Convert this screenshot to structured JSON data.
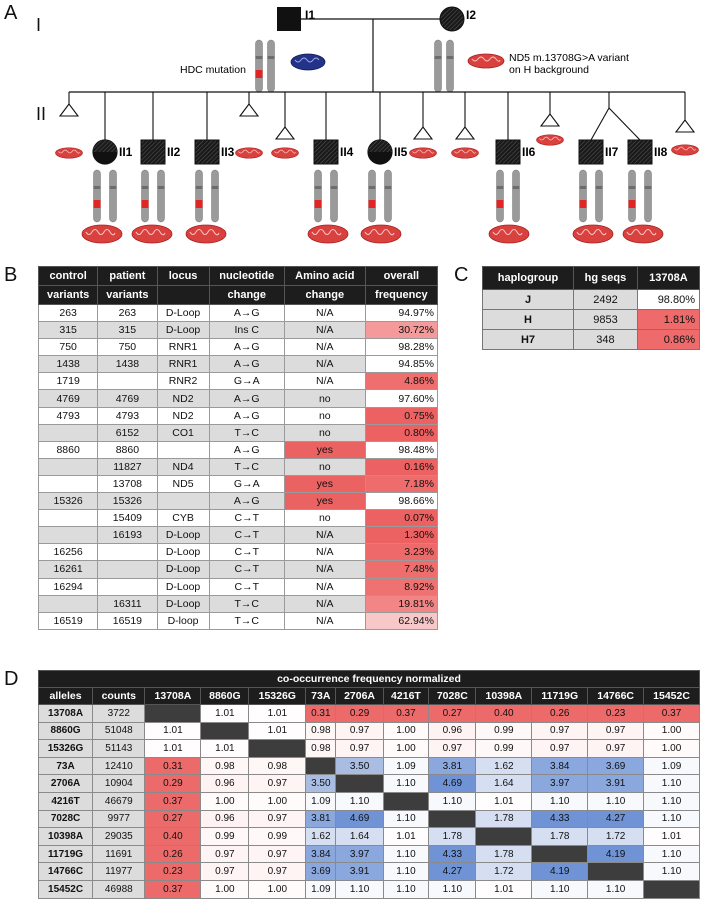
{
  "panelA": {
    "letter": "A",
    "gen1_label": "I",
    "gen2_label": "II",
    "I1_label": "I1",
    "I2_label": "I2",
    "hdc_label": "HDC mutation",
    "nd5_label_line1": "ND5 m.13708G>A variant",
    "nd5_label_line2": "on H background",
    "affected": [
      "II1",
      "II2",
      "II3",
      "II4",
      "II5",
      "II6",
      "II7",
      "II8"
    ]
  },
  "panelB": {
    "letter": "B",
    "headers": [
      [
        "control",
        "patient",
        "locus",
        "nucleotide",
        "Amino acid",
        "overall"
      ],
      [
        "variants",
        "variants",
        "",
        "change",
        "change",
        "frequency"
      ]
    ],
    "rows": [
      {
        "ctrl": "263",
        "pat": "263",
        "locus": "D-Loop",
        "nt": "A→G",
        "aa": "N/A",
        "freq": "94.97%",
        "gray": false,
        "aa_color": "",
        "freq_color": "#ffffff"
      },
      {
        "ctrl": "315",
        "pat": "315",
        "locus": "D-Loop",
        "nt": "Ins C",
        "aa": "N/A",
        "freq": "30.72%",
        "gray": true,
        "aa_color": "",
        "freq_color": "#f59a9a"
      },
      {
        "ctrl": "750",
        "pat": "750",
        "locus": "RNR1",
        "nt": "A→G",
        "aa": "N/A",
        "freq": "98.28%",
        "gray": false,
        "aa_color": "",
        "freq_color": "#ffffff"
      },
      {
        "ctrl": "1438",
        "pat": "1438",
        "locus": "RNR1",
        "nt": "A→G",
        "aa": "N/A",
        "freq": "94.85%",
        "gray": true,
        "aa_color": "",
        "freq_color": "#ffffff"
      },
      {
        "ctrl": "1719",
        "pat": "",
        "locus": "RNR2",
        "nt": "G→A",
        "aa": "N/A",
        "freq": "4.86%",
        "gray": false,
        "aa_color": "",
        "freq_color": "#ef6e6e"
      },
      {
        "ctrl": "4769",
        "pat": "4769",
        "locus": "ND2",
        "nt": "A→G",
        "aa": "no",
        "freq": "97.60%",
        "gray": true,
        "aa_color": "",
        "freq_color": "#ffffff"
      },
      {
        "ctrl": "4793",
        "pat": "4793",
        "locus": "ND2",
        "nt": "A→G",
        "aa": "no",
        "freq": "0.75%",
        "gray": false,
        "aa_color": "",
        "freq_color": "#ec6262"
      },
      {
        "ctrl": "",
        "pat": "6152",
        "locus": "CO1",
        "nt": "T→C",
        "aa": "no",
        "freq": "0.80%",
        "gray": true,
        "aa_color": "",
        "freq_color": "#ec6262"
      },
      {
        "ctrl": "8860",
        "pat": "8860",
        "locus": "",
        "nt": "A→G",
        "aa": "yes",
        "freq": "98.48%",
        "gray": false,
        "aa_color": "#ea6262",
        "freq_color": "#ffffff"
      },
      {
        "ctrl": "",
        "pat": "11827",
        "locus": "ND4",
        "nt": "T→C",
        "aa": "no",
        "freq": "0.16%",
        "gray": true,
        "aa_color": "",
        "freq_color": "#ec6262"
      },
      {
        "ctrl": "",
        "pat": "13708",
        "locus": "ND5",
        "nt": "G→A",
        "aa": "yes",
        "freq": "7.18%",
        "gray": false,
        "aa_color": "#ea6262",
        "freq_color": "#ee6c6c"
      },
      {
        "ctrl": "15326",
        "pat": "15326",
        "locus": "",
        "nt": "A→G",
        "aa": "yes",
        "freq": "98.66%",
        "gray": true,
        "aa_color": "#ea6262",
        "freq_color": "#ffffff"
      },
      {
        "ctrl": "",
        "pat": "15409",
        "locus": "CYB",
        "nt": "C→T",
        "aa": "no",
        "freq": "0.07%",
        "gray": false,
        "aa_color": "",
        "freq_color": "#ec6262"
      },
      {
        "ctrl": "",
        "pat": "16193",
        "locus": "D-Loop",
        "nt": "C→T",
        "aa": "N/A",
        "freq": "1.30%",
        "gray": true,
        "aa_color": "",
        "freq_color": "#ec6262"
      },
      {
        "ctrl": "16256",
        "pat": "",
        "locus": "D-Loop",
        "nt": "C→T",
        "aa": "N/A",
        "freq": "3.23%",
        "gray": false,
        "aa_color": "",
        "freq_color": "#ee6a6a"
      },
      {
        "ctrl": "16261",
        "pat": "",
        "locus": "D-Loop",
        "nt": "C→T",
        "aa": "N/A",
        "freq": "7.48%",
        "gray": true,
        "aa_color": "",
        "freq_color": "#ee6e6e"
      },
      {
        "ctrl": "16294",
        "pat": "",
        "locus": "D-Loop",
        "nt": "C→T",
        "aa": "N/A",
        "freq": "8.92%",
        "gray": false,
        "aa_color": "",
        "freq_color": "#ef7272"
      },
      {
        "ctrl": "",
        "pat": "16311",
        "locus": "D-Loop",
        "nt": "T→C",
        "aa": "N/A",
        "freq": "19.81%",
        "gray": true,
        "aa_color": "",
        "freq_color": "#f28686"
      },
      {
        "ctrl": "16519",
        "pat": "16519",
        "locus": "D-loop",
        "nt": "T→C",
        "aa": "N/A",
        "freq": "62.94%",
        "gray": false,
        "aa_color": "",
        "freq_color": "#f8c8c8"
      }
    ]
  },
  "panelC": {
    "letter": "C",
    "headers": [
      "haplogroup",
      "hg seqs",
      "13708A"
    ],
    "rows": [
      {
        "hg": "J",
        "seqs": "2492",
        "pct": "98.80%",
        "color": "#ffffff"
      },
      {
        "hg": "H",
        "seqs": "9853",
        "pct": "1.81%",
        "color": "#ef6a6a"
      },
      {
        "hg": "H7",
        "seqs": "348",
        "pct": "0.86%",
        "color": "#ef6a6a"
      }
    ]
  },
  "panelD": {
    "letter": "D",
    "title": "co-occurrence frequency normalized",
    "col_headers": [
      "alleles",
      "counts",
      "13708A",
      "8860G",
      "15326G",
      "73A",
      "2706A",
      "4216T",
      "7028C",
      "10398A",
      "11719G",
      "14766C",
      "15452C"
    ],
    "rows": [
      {
        "allele": "13708A",
        "count": "3722",
        "cells": [
          "",
          "1.01",
          "1.01",
          "0.31",
          "0.29",
          "0.37",
          "0.27",
          "0.40",
          "0.26",
          "0.23",
          "0.37"
        ]
      },
      {
        "allele": "8860G",
        "count": "51048",
        "cells": [
          "1.01",
          "",
          "1.01",
          "0.98",
          "0.97",
          "1.00",
          "0.96",
          "0.99",
          "0.97",
          "0.97",
          "1.00"
        ]
      },
      {
        "allele": "15326G",
        "count": "51143",
        "cells": [
          "1.01",
          "1.01",
          "",
          "0.98",
          "0.97",
          "1.00",
          "0.97",
          "0.99",
          "0.97",
          "0.97",
          "1.00"
        ]
      },
      {
        "allele": "73A",
        "count": "12410",
        "cells": [
          "0.31",
          "0.98",
          "0.98",
          "",
          "3.50",
          "1.09",
          "3.81",
          "1.62",
          "3.84",
          "3.69",
          "1.09"
        ]
      },
      {
        "allele": "2706A",
        "count": "10904",
        "cells": [
          "0.29",
          "0.96",
          "0.97",
          "3.50",
          "",
          "1.10",
          "4.69",
          "1.64",
          "3.97",
          "3.91",
          "1.10"
        ]
      },
      {
        "allele": "4216T",
        "count": "46679",
        "cells": [
          "0.37",
          "1.00",
          "1.00",
          "1.09",
          "1.10",
          "",
          "1.10",
          "1.01",
          "1.10",
          "1.10",
          "1.10"
        ]
      },
      {
        "allele": "7028C",
        "count": "9977",
        "cells": [
          "0.27",
          "0.96",
          "0.97",
          "3.81",
          "4.69",
          "1.10",
          "",
          "1.78",
          "4.33",
          "4.27",
          "1.10"
        ]
      },
      {
        "allele": "10398A",
        "count": "29035",
        "cells": [
          "0.40",
          "0.99",
          "0.99",
          "1.62",
          "1.64",
          "1.01",
          "1.78",
          "",
          "1.78",
          "1.72",
          "1.01"
        ]
      },
      {
        "allele": "11719G",
        "count": "11691",
        "cells": [
          "0.26",
          "0.97",
          "0.97",
          "3.84",
          "3.97",
          "1.10",
          "4.33",
          "1.78",
          "",
          "4.19",
          "1.10"
        ]
      },
      {
        "allele": "14766C",
        "count": "11977",
        "cells": [
          "0.23",
          "0.97",
          "0.97",
          "3.69",
          "3.91",
          "1.10",
          "4.27",
          "1.72",
          "4.19",
          "",
          "1.10"
        ]
      },
      {
        "allele": "15452C",
        "count": "46988",
        "cells": [
          "0.37",
          "1.00",
          "1.00",
          "1.09",
          "1.10",
          "1.10",
          "1.10",
          "1.01",
          "1.10",
          "1.10",
          ""
        ]
      }
    ]
  }
}
